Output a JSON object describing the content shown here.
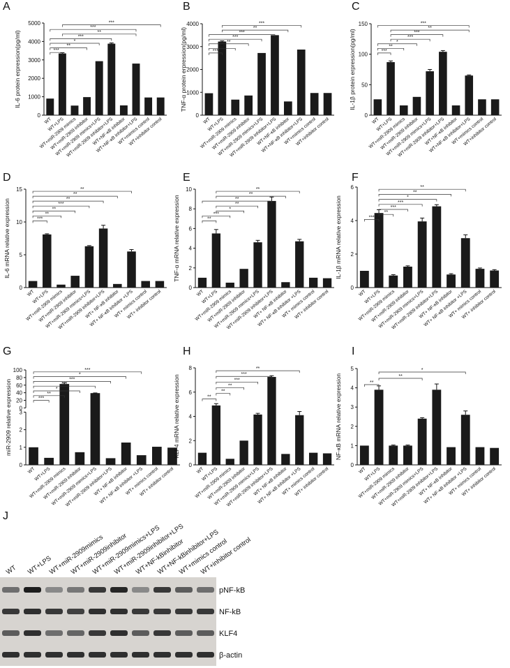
{
  "panels_common": {
    "categories": [
      "WT",
      "WT+LPS",
      "WT+miR-2909 mimics",
      "WT+miR-2909 inhibitor",
      "WT+miR-2909 mimics+LPS",
      "WT+miR-2909 inhibitor+LPS",
      "WT+NF-κB inhibitor",
      "WT+NF-κB inhibitor+LPS",
      "WT+mimics control",
      "WT+inhibitor control"
    ],
    "categories_alt": [
      "WT",
      "WT+LPS",
      "WT+miR-2909 mimics",
      "WT+miR-2909 inhibitor",
      "WT+miR-2909 mimics+LPS",
      "WT+miR-2909 inhibitor+LPS",
      "WT+ NF-κB inhibitor",
      "WT+ NF-κB inhibitor +LPS",
      "WT+ mimics control",
      "WT+ inhibitor control"
    ]
  },
  "chart_data": [
    {
      "panel": "A",
      "type": "bar",
      "ylabel": "IL-6 protein erpression(pg/ml)",
      "ylim": [
        0,
        5000
      ],
      "yticks": [
        0,
        1000,
        2000,
        3000,
        4000,
        5000
      ],
      "values": [
        900,
        3350,
        520,
        980,
        2930,
        3880,
        530,
        2800,
        960,
        960
      ],
      "errors": [
        0,
        40,
        0,
        0,
        0,
        40,
        0,
        0,
        0,
        0
      ],
      "sig": [
        {
          "a": 0,
          "b": 1,
          "label": "***"
        },
        {
          "a": 0,
          "b": 3,
          "label": "**"
        },
        {
          "a": 0,
          "b": 4,
          "label": "*"
        },
        {
          "a": 0,
          "b": 5,
          "label": "***"
        },
        {
          "a": 0,
          "b": 7,
          "label": "***"
        },
        {
          "a": 1,
          "b": 7,
          "label": "**"
        },
        {
          "a": 1,
          "b": 9,
          "label": "***"
        }
      ],
      "cat_key": "categories"
    },
    {
      "panel": "B",
      "type": "bar",
      "ylabel": "TNF-α protein erpression(pg/ml)",
      "ylim": [
        0,
        4000
      ],
      "yticks": [
        0,
        1000,
        2000,
        3000,
        4000
      ],
      "values": [
        960,
        3220,
        680,
        860,
        2720,
        3500,
        600,
        2870,
        970,
        970
      ],
      "errors": [
        0,
        30,
        0,
        0,
        0,
        0,
        0,
        0,
        0,
        0
      ],
      "sig": [
        {
          "a": 0,
          "b": 1,
          "label": "***"
        },
        {
          "a": 0,
          "b": 2,
          "label": "*"
        },
        {
          "a": 0,
          "b": 3,
          "label": "**"
        },
        {
          "a": 0,
          "b": 4,
          "label": "***"
        },
        {
          "a": 0,
          "b": 5,
          "label": "***"
        },
        {
          "a": 1,
          "b": 6,
          "label": "**"
        },
        {
          "a": 1,
          "b": 7,
          "label": "***"
        }
      ],
      "cat_key": "categories"
    },
    {
      "panel": "C",
      "type": "bar",
      "ylabel": "IL-1β protein erpression(pg/ml)",
      "ylim": [
        0,
        150
      ],
      "yticks": [
        0,
        50,
        100,
        150
      ],
      "values": [
        26,
        87,
        16,
        30,
        72,
        104,
        16,
        65,
        26,
        26
      ],
      "errors": [
        0,
        2,
        0,
        0,
        3,
        2,
        0,
        1,
        0,
        0
      ],
      "sig": [
        {
          "a": 0,
          "b": 1,
          "label": "***"
        },
        {
          "a": 0,
          "b": 2,
          "label": "**"
        },
        {
          "a": 0,
          "b": 3,
          "label": "*"
        },
        {
          "a": 1,
          "b": 4,
          "label": "***"
        },
        {
          "a": 1,
          "b": 5,
          "label": "***"
        },
        {
          "a": 1,
          "b": 7,
          "label": "**"
        },
        {
          "a": 0,
          "b": 7,
          "label": "***"
        }
      ],
      "cat_key": "categories"
    },
    {
      "panel": "D",
      "type": "bar",
      "ylabel": "IL-6 mRNA relative expression",
      "ylim": [
        0,
        15
      ],
      "yticks": [
        0,
        5,
        10,
        15
      ],
      "values": [
        1.0,
        8.1,
        0.45,
        1.8,
        6.3,
        9.0,
        0.55,
        5.5,
        1.0,
        1.0
      ],
      "errors": [
        0,
        0.1,
        0,
        0,
        0.1,
        0.5,
        0,
        0.3,
        0,
        0
      ],
      "sig": [
        {
          "a": 0,
          "b": 1,
          "label": "***"
        },
        {
          "a": 0,
          "b": 2,
          "label": "**"
        },
        {
          "a": 0,
          "b": 3,
          "label": "**"
        },
        {
          "a": 0,
          "b": 4,
          "label": "***"
        },
        {
          "a": 0,
          "b": 5,
          "label": "**"
        },
        {
          "a": 0,
          "b": 6,
          "label": "**"
        },
        {
          "a": 0,
          "b": 7,
          "label": "**"
        }
      ],
      "cat_key": "categories_alt"
    },
    {
      "panel": "E",
      "type": "bar",
      "ylabel": "TNF-α mRNA relative expression",
      "ylim": [
        0,
        10
      ],
      "yticks": [
        0,
        2,
        4,
        6,
        8,
        10
      ],
      "values": [
        1.0,
        5.5,
        0.5,
        1.9,
        4.6,
        8.8,
        0.55,
        4.7,
        1.0,
        0.95
      ],
      "errors": [
        0,
        0.4,
        0,
        0,
        0.2,
        0.4,
        0,
        0.2,
        0,
        0
      ],
      "sig": [
        {
          "a": 0,
          "b": 1,
          "label": "**"
        },
        {
          "a": 0,
          "b": 2,
          "label": "***"
        },
        {
          "a": 1,
          "b": 3,
          "label": "*"
        },
        {
          "a": 1,
          "b": 4,
          "label": "**"
        },
        {
          "a": 0,
          "b": 5,
          "label": "**"
        },
        {
          "a": 1,
          "b": 6,
          "label": "**"
        },
        {
          "a": 1,
          "b": 7,
          "label": "**"
        }
      ],
      "cat_key": "categories_alt"
    },
    {
      "panel": "F",
      "type": "bar",
      "ylabel": "IL-1β mRNA relative expression",
      "ylim": [
        0,
        6
      ],
      "yticks": [
        0,
        2,
        4,
        6
      ],
      "values": [
        1.0,
        4.45,
        0.72,
        1.25,
        3.95,
        4.85,
        0.78,
        2.95,
        1.12,
        1.02
      ],
      "errors": [
        0,
        0.2,
        0.05,
        0.05,
        0.2,
        0.1,
        0.05,
        0.2,
        0.05,
        0.05
      ],
      "sig": [
        {
          "a": 0,
          "b": 1,
          "label": "***"
        },
        {
          "a": 1,
          "b": 2,
          "label": "**"
        },
        {
          "a": 1,
          "b": 3,
          "label": "***"
        },
        {
          "a": 1,
          "b": 4,
          "label": "***"
        },
        {
          "a": 1,
          "b": 5,
          "label": "*"
        },
        {
          "a": 1,
          "b": 6,
          "label": "**"
        },
        {
          "a": 1,
          "b": 7,
          "label": "**"
        }
      ],
      "cat_key": "categories_alt"
    },
    {
      "panel": "G",
      "type": "bar",
      "ylabel": "miR-2909 relative expression",
      "broken_axis": true,
      "yticks_upper": [
        0,
        20,
        40,
        60,
        80,
        100
      ],
      "yticks_lower": [
        0,
        1,
        2,
        3
      ],
      "values": [
        1.0,
        0.4,
        63,
        0.72,
        39,
        0.38,
        1.27,
        0.55,
        1.03,
        0.98
      ],
      "errors": [
        0,
        0,
        3,
        0,
        0.5,
        0,
        0,
        0,
        0,
        0
      ],
      "sig": [
        {
          "a": 0,
          "b": 1,
          "label": "***"
        },
        {
          "a": 0,
          "b": 2,
          "label": "**"
        },
        {
          "a": 0,
          "b": 3,
          "label": "*"
        },
        {
          "a": 0,
          "b": 4,
          "label": "***"
        },
        {
          "a": 0,
          "b": 5,
          "label": "***"
        },
        {
          "a": 0,
          "b": 6,
          "label": "*"
        },
        {
          "a": 0,
          "b": 7,
          "label": "***"
        }
      ],
      "cat_key": "categories_alt"
    },
    {
      "panel": "H",
      "type": "bar",
      "ylabel": "KLF4 mRNA relative expression",
      "ylim": [
        0,
        8
      ],
      "yticks": [
        0,
        2,
        4,
        6,
        8
      ],
      "values": [
        1.0,
        4.9,
        0.5,
        2.0,
        4.15,
        7.25,
        0.9,
        4.1,
        1.0,
        0.95
      ],
      "errors": [
        0,
        0.15,
        0,
        0,
        0.1,
        0.1,
        0,
        0.3,
        0,
        0
      ],
      "sig": [
        {
          "a": 0,
          "b": 1,
          "label": "**"
        },
        {
          "a": 1,
          "b": 2,
          "label": "**"
        },
        {
          "a": 1,
          "b": 3,
          "label": "**"
        },
        {
          "a": 1,
          "b": 4,
          "label": "***"
        },
        {
          "a": 1,
          "b": 5,
          "label": "***"
        },
        {
          "a": 1,
          "b": 7,
          "label": "**"
        }
      ],
      "cat_key": "categories_alt"
    },
    {
      "panel": "I",
      "type": "bar",
      "ylabel": "NF-κB mRNA relative expression",
      "ylim": [
        0,
        5
      ],
      "yticks": [
        0,
        1,
        2,
        3,
        4,
        5
      ],
      "values": [
        1.0,
        3.9,
        1.0,
        1.0,
        2.4,
        3.9,
        0.92,
        2.6,
        0.92,
        0.88
      ],
      "errors": [
        0,
        0.2,
        0.03,
        0.03,
        0.05,
        0.3,
        0,
        0.2,
        0,
        0
      ],
      "sig": [
        {
          "a": 0,
          "b": 1,
          "label": "**"
        },
        {
          "a": 1,
          "b": 4,
          "label": "**"
        },
        {
          "a": 1,
          "b": 7,
          "label": "*"
        }
      ],
      "cat_key": "categories_alt"
    }
  ],
  "blot": {
    "panel": "J",
    "lanes": [
      "WT",
      "WT+LPS",
      "WT+miR-2909mimics",
      "WT+miR-2909inhibitor",
      "WT+miR-2909mimics+LPS",
      "WT+miR-2909inhibitor+LPS",
      "WT+NF-kBinhibitor",
      "WT+NF-kBinhibitor+LPS",
      "WT+mimics control",
      "WT+inhibitor control"
    ],
    "bands": [
      {
        "label": "pNF-kB",
        "intensity": [
          0.5,
          0.95,
          0.35,
          0.45,
          0.8,
          0.9,
          0.35,
          0.8,
          0.6,
          0.5
        ]
      },
      {
        "label": "NF-kB",
        "intensity": [
          0.8,
          0.85,
          0.8,
          0.75,
          0.85,
          0.85,
          0.8,
          0.8,
          0.8,
          0.8
        ]
      },
      {
        "label": "KLF4",
        "intensity": [
          0.6,
          0.85,
          0.5,
          0.55,
          0.8,
          0.85,
          0.6,
          0.8,
          0.6,
          0.6
        ]
      },
      {
        "label": "β-actin",
        "intensity": [
          0.85,
          0.85,
          0.85,
          0.85,
          0.85,
          0.85,
          0.85,
          0.85,
          0.85,
          0.85
        ]
      }
    ]
  }
}
